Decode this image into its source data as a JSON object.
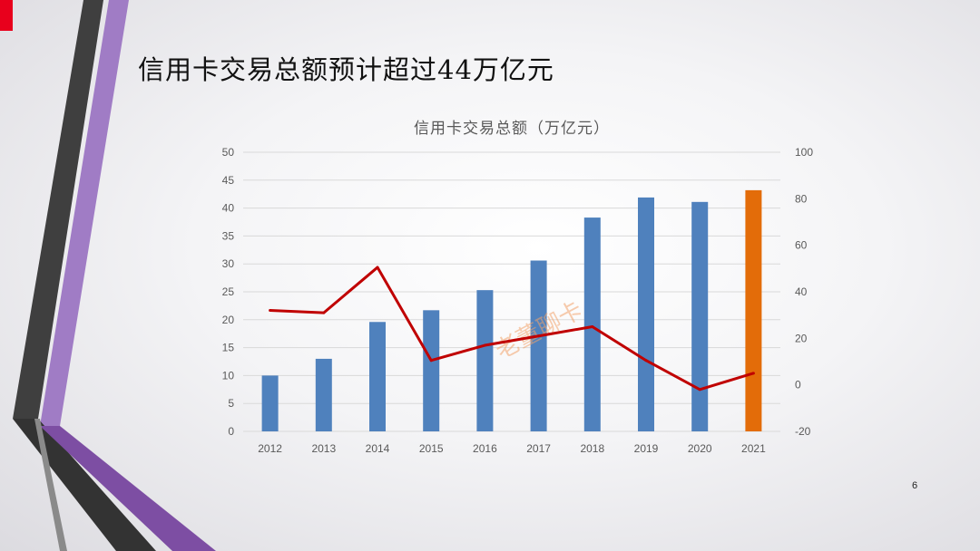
{
  "slide": {
    "title": "信用卡交易总额预计超过44万亿元",
    "page_number": "6",
    "watermark": "老董聊卡"
  },
  "colors": {
    "bar": "#4f81bd",
    "bar_highlight": "#e36c09",
    "line": "#c00000",
    "accent_red": "#e8001c",
    "deco_purple": "#8e5bb0",
    "deco_dark": "#3a3a3a"
  },
  "chart_data": {
    "type": "bar",
    "title": "信用卡交易总额（万亿元）",
    "categories": [
      "2012",
      "2013",
      "2014",
      "2015",
      "2016",
      "2017",
      "2018",
      "2019",
      "2020",
      "2021"
    ],
    "series": [
      {
        "type": "bar",
        "axis": "left",
        "values": [
          10,
          13,
          19.6,
          21.7,
          25.3,
          30.6,
          38.3,
          41.9,
          41.1,
          43.2
        ],
        "highlight_index": 9
      },
      {
        "type": "line",
        "axis": "right",
        "values": [
          32,
          31,
          50.5,
          10.5,
          17,
          21,
          25,
          10.5,
          -2,
          5
        ]
      }
    ],
    "left_axis": {
      "min": 0,
      "max": 50,
      "step": 5
    },
    "right_axis": {
      "min": -20,
      "max": 100,
      "step": 20
    },
    "grid": true,
    "legend": "none"
  }
}
